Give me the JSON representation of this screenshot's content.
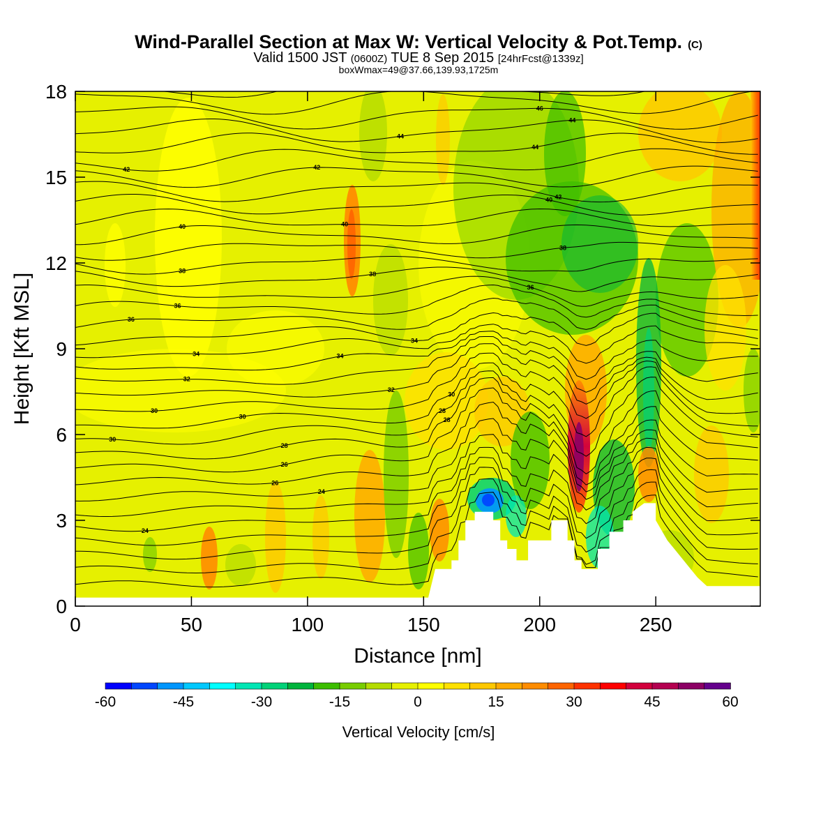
{
  "chart_data": {
    "type": "heatmap",
    "title": "Wind-Parallel Section at Max W: Vertical Velocity & Pot.Temp.",
    "title_mark": "(C)",
    "subtitle": {
      "valid": "Valid 1500 JST",
      "utc": "(0600Z)",
      "date": "TUE 8 Sep 2015",
      "forecast": "[24hrFcst@1339z]"
    },
    "info": "boxWmax=49@37.66,139.93,1725m",
    "xlabel": "Distance [nm]",
    "ylabel": "Height [Kft MSL]",
    "xlim": [
      0,
      295
    ],
    "ylim": [
      0,
      18
    ],
    "x_ticks": [
      0,
      50,
      100,
      150,
      200,
      250
    ],
    "y_ticks": [
      0,
      3,
      6,
      9,
      12,
      15,
      18
    ],
    "colorbar": {
      "label": "Vertical Velocity [cm/s]",
      "min": -60,
      "max": 60,
      "ticks": [
        -60,
        -45,
        -30,
        -15,
        0,
        15,
        30,
        45,
        60
      ],
      "colors": [
        "#0000ff",
        "#0046ff",
        "#0096ff",
        "#00c8ff",
        "#00ffff",
        "#00e6b4",
        "#00d278",
        "#00b43c",
        "#3cbe00",
        "#78cd00",
        "#b4dc00",
        "#e6f000",
        "#ffff00",
        "#ffe100",
        "#ffc800",
        "#ffaa00",
        "#ff8c00",
        "#ff6400",
        "#ff3200",
        "#ff0000",
        "#d2003c",
        "#b40050",
        "#8c0064",
        "#64008c"
      ]
    },
    "theta_labels": [
      "24",
      "24",
      "26",
      "26",
      "28",
      "28",
      "28",
      "30",
      "30",
      "30",
      "30",
      "32",
      "32",
      "34",
      "34",
      "34",
      "36",
      "36",
      "36",
      "38",
      "38",
      "38",
      "40",
      "40",
      "40",
      "42",
      "42",
      "42",
      "44",
      "44",
      "44",
      "46"
    ],
    "terrain": [
      [
        0,
        0.3
      ],
      [
        152,
        0.3
      ],
      [
        155,
        1.3
      ],
      [
        162,
        1.3
      ],
      [
        162,
        1.6
      ],
      [
        165,
        1.6
      ],
      [
        165,
        2.3
      ],
      [
        168,
        2.3
      ],
      [
        168,
        3.0
      ],
      [
        172,
        3.0
      ],
      [
        172,
        3.3
      ],
      [
        180,
        3.3
      ],
      [
        180,
        3.0
      ],
      [
        183,
        3.0
      ],
      [
        183,
        2.3
      ],
      [
        186,
        2.3
      ],
      [
        186,
        2.0
      ],
      [
        190,
        2.0
      ],
      [
        190,
        1.6
      ],
      [
        195,
        1.6
      ],
      [
        195,
        2.3
      ],
      [
        205,
        2.3
      ],
      [
        205,
        3.0
      ],
      [
        212,
        3.0
      ],
      [
        212,
        2.3
      ],
      [
        215,
        2.3
      ],
      [
        215,
        1.6
      ],
      [
        218,
        1.6
      ],
      [
        218,
        1.3
      ],
      [
        225,
        1.3
      ],
      [
        225,
        2.0
      ],
      [
        230,
        2.0
      ],
      [
        230,
        2.6
      ],
      [
        236,
        2.6
      ],
      [
        236,
        3.0
      ],
      [
        240,
        3.0
      ],
      [
        240,
        3.3
      ],
      [
        245,
        3.6
      ],
      [
        250,
        3.6
      ],
      [
        250,
        3.0
      ],
      [
        255,
        2.3
      ],
      [
        258,
        2.0
      ],
      [
        262,
        1.6
      ],
      [
        265,
        1.3
      ],
      [
        268,
        1.0
      ],
      [
        272,
        0.7
      ],
      [
        295,
        0.7
      ]
    ]
  }
}
